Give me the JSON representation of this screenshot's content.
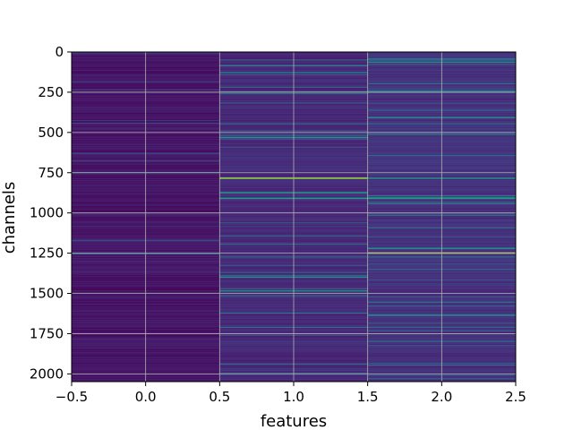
{
  "chart_data": {
    "type": "heatmap",
    "title": "",
    "xlabel": "features",
    "ylabel": "channels",
    "xlim": [
      -0.5,
      2.5
    ],
    "ylim": [
      2048,
      0
    ],
    "x_ticks": [
      -0.5,
      0.0,
      0.5,
      1.0,
      1.5,
      2.0,
      2.5
    ],
    "x_tick_labels": [
      "−0.5",
      "0.0",
      "0.5",
      "1.0",
      "1.5",
      "2.0",
      "2.5"
    ],
    "y_ticks": [
      0,
      250,
      500,
      750,
      1000,
      1250,
      1500,
      1750,
      2000
    ],
    "y_tick_labels": [
      "0",
      "250",
      "500",
      "750",
      "1000",
      "1250",
      "1500",
      "1750",
      "2000"
    ],
    "grid": true,
    "colormap": "viridis",
    "columns": [
      0,
      1,
      2
    ],
    "num_channels": 2048,
    "column_base_intensity": [
      0.06,
      0.12,
      0.14
    ],
    "highlight_rows": [
      {
        "column": 1,
        "channel": 780,
        "value": 0.85
      },
      {
        "column": 1,
        "channel": 870,
        "value": 0.55
      },
      {
        "column": 1,
        "channel": 905,
        "value": 0.55
      },
      {
        "column": 1,
        "channel": 1395,
        "value": 0.5
      },
      {
        "column": 1,
        "channel": 245,
        "value": 0.45
      },
      {
        "column": 1,
        "channel": 125,
        "value": 0.4
      },
      {
        "column": 2,
        "channel": 1245,
        "value": 0.9
      },
      {
        "column": 2,
        "channel": 780,
        "value": 0.5
      },
      {
        "column": 2,
        "channel": 905,
        "value": 0.55
      },
      {
        "column": 2,
        "channel": 245,
        "value": 0.45
      },
      {
        "column": 2,
        "channel": 1630,
        "value": 0.45
      },
      {
        "column": 2,
        "channel": 40,
        "value": 0.4
      },
      {
        "column": 0,
        "channel": 1250,
        "value": 0.35
      },
      {
        "column": 0,
        "channel": 745,
        "value": 0.3
      }
    ]
  }
}
